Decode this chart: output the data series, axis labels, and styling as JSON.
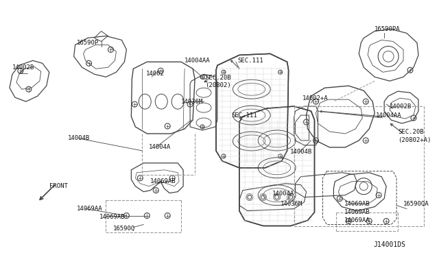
{
  "bg_color": "#f5f5f2",
  "line_color": "#444444",
  "dashed_color": "#999999",
  "label_color": "#111111",
  "diagram_ref": "J14001DS",
  "labels_left": [
    [
      "16590P",
      135,
      62
    ],
    [
      "14002B",
      28,
      100
    ],
    [
      "14002",
      218,
      112
    ],
    [
      "14004AA",
      275,
      90
    ],
    [
      "SEC.20B",
      302,
      115
    ],
    [
      "(20802)",
      302,
      126
    ],
    [
      "14036M",
      272,
      148
    ],
    [
      "SEC.111",
      350,
      95
    ],
    [
      "14004B",
      107,
      198
    ],
    [
      "14004A",
      222,
      212
    ],
    [
      "14069AB",
      223,
      268
    ],
    [
      "14069AA",
      120,
      302
    ],
    [
      "14069AB",
      148,
      315
    ],
    [
      "16590Q",
      183,
      335
    ],
    [
      "FRONT",
      68,
      278
    ]
  ],
  "labels_right": [
    [
      "16590PA",
      555,
      42
    ],
    [
      "14002+A",
      448,
      145
    ],
    [
      "14002B",
      585,
      155
    ],
    [
      "14004AA",
      558,
      168
    ],
    [
      "SEC.20B",
      590,
      193
    ],
    [
      "(20802+A)",
      590,
      204
    ],
    [
      "SEC.111",
      342,
      170
    ],
    [
      "14004B",
      430,
      220
    ],
    [
      "14004A",
      405,
      285
    ],
    [
      "14036M",
      418,
      300
    ],
    [
      "14069AB",
      528,
      300
    ],
    [
      "14069AB",
      528,
      311
    ],
    [
      "14069AA",
      528,
      322
    ],
    [
      "16590QA",
      598,
      300
    ]
  ]
}
